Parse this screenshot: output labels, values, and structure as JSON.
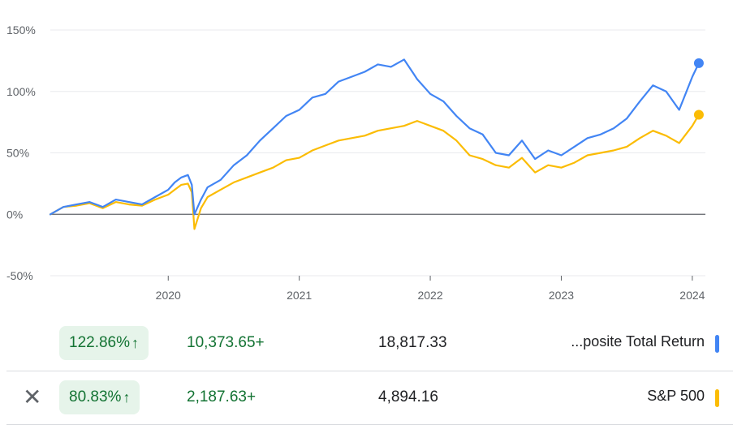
{
  "chart_data": {
    "type": "line",
    "title": "",
    "xlabel": "",
    "ylabel": "",
    "x_ticks": [
      "2020",
      "2021",
      "2022",
      "2023",
      "2024"
    ],
    "y_ticks": [
      "150%",
      "100%",
      "50%",
      "0%",
      "-50%"
    ],
    "ylim": [
      -50,
      150
    ],
    "xlim": [
      2019.1,
      2024.1
    ],
    "grid": true,
    "series": [
      {
        "name": "...posite Total Return",
        "color": "#4285f4",
        "x": [
          2019.1,
          2019.2,
          2019.3,
          2019.4,
          2019.5,
          2019.6,
          2019.7,
          2019.8,
          2019.9,
          2020.0,
          2020.05,
          2020.1,
          2020.15,
          2020.18,
          2020.2,
          2020.25,
          2020.3,
          2020.4,
          2020.5,
          2020.6,
          2020.7,
          2020.8,
          2020.9,
          2021.0,
          2021.1,
          2021.2,
          2021.3,
          2021.4,
          2021.5,
          2021.6,
          2021.7,
          2021.8,
          2021.85,
          2021.9,
          2021.95,
          2022.0,
          2022.1,
          2022.2,
          2022.3,
          2022.4,
          2022.5,
          2022.6,
          2022.7,
          2022.8,
          2022.9,
          2023.0,
          2023.1,
          2023.2,
          2023.3,
          2023.4,
          2023.5,
          2023.6,
          2023.7,
          2023.8,
          2023.9,
          2024.0,
          2024.05
        ],
        "y": [
          0,
          6,
          8,
          10,
          6,
          12,
          10,
          8,
          14,
          20,
          26,
          30,
          32,
          24,
          0,
          12,
          22,
          28,
          40,
          48,
          60,
          70,
          80,
          85,
          95,
          98,
          108,
          112,
          116,
          122,
          120,
          126,
          118,
          110,
          104,
          98,
          92,
          80,
          70,
          65,
          50,
          48,
          60,
          45,
          52,
          48,
          55,
          62,
          65,
          70,
          78,
          92,
          105,
          100,
          85,
          112,
          123
        ]
      },
      {
        "name": "S&P 500",
        "color": "#fbbc04",
        "x": [
          2019.1,
          2019.2,
          2019.3,
          2019.4,
          2019.5,
          2019.6,
          2019.7,
          2019.8,
          2019.9,
          2020.0,
          2020.05,
          2020.1,
          2020.15,
          2020.18,
          2020.2,
          2020.25,
          2020.3,
          2020.4,
          2020.5,
          2020.6,
          2020.7,
          2020.8,
          2020.9,
          2021.0,
          2021.1,
          2021.2,
          2021.3,
          2021.4,
          2021.5,
          2021.6,
          2021.7,
          2021.8,
          2021.85,
          2021.9,
          2021.95,
          2022.0,
          2022.1,
          2022.2,
          2022.3,
          2022.4,
          2022.5,
          2022.6,
          2022.7,
          2022.8,
          2022.9,
          2023.0,
          2023.1,
          2023.2,
          2023.3,
          2023.4,
          2023.5,
          2023.6,
          2023.7,
          2023.8,
          2023.9,
          2024.0,
          2024.05
        ],
        "y": [
          0,
          6,
          7,
          9,
          5,
          10,
          8,
          7,
          12,
          16,
          20,
          24,
          25,
          18,
          -12,
          5,
          14,
          20,
          26,
          30,
          34,
          38,
          44,
          46,
          52,
          56,
          60,
          62,
          64,
          68,
          70,
          72,
          74,
          76,
          74,
          72,
          68,
          60,
          48,
          45,
          40,
          38,
          46,
          34,
          40,
          38,
          42,
          48,
          50,
          52,
          55,
          62,
          68,
          64,
          58,
          72,
          81
        ]
      }
    ]
  },
  "rows": [
    {
      "badge": "122.86%",
      "badge_arrow": "↑",
      "change": "10,373.65+",
      "price": "18,817.33",
      "name": "...posite Total Return",
      "color": "#4285f4"
    },
    {
      "remove": "✕",
      "badge": "80.83%",
      "badge_arrow": "↑",
      "change": "2,187.63+",
      "price": "4,894.16",
      "name": "S&P 500",
      "color": "#fbbc04"
    }
  ]
}
